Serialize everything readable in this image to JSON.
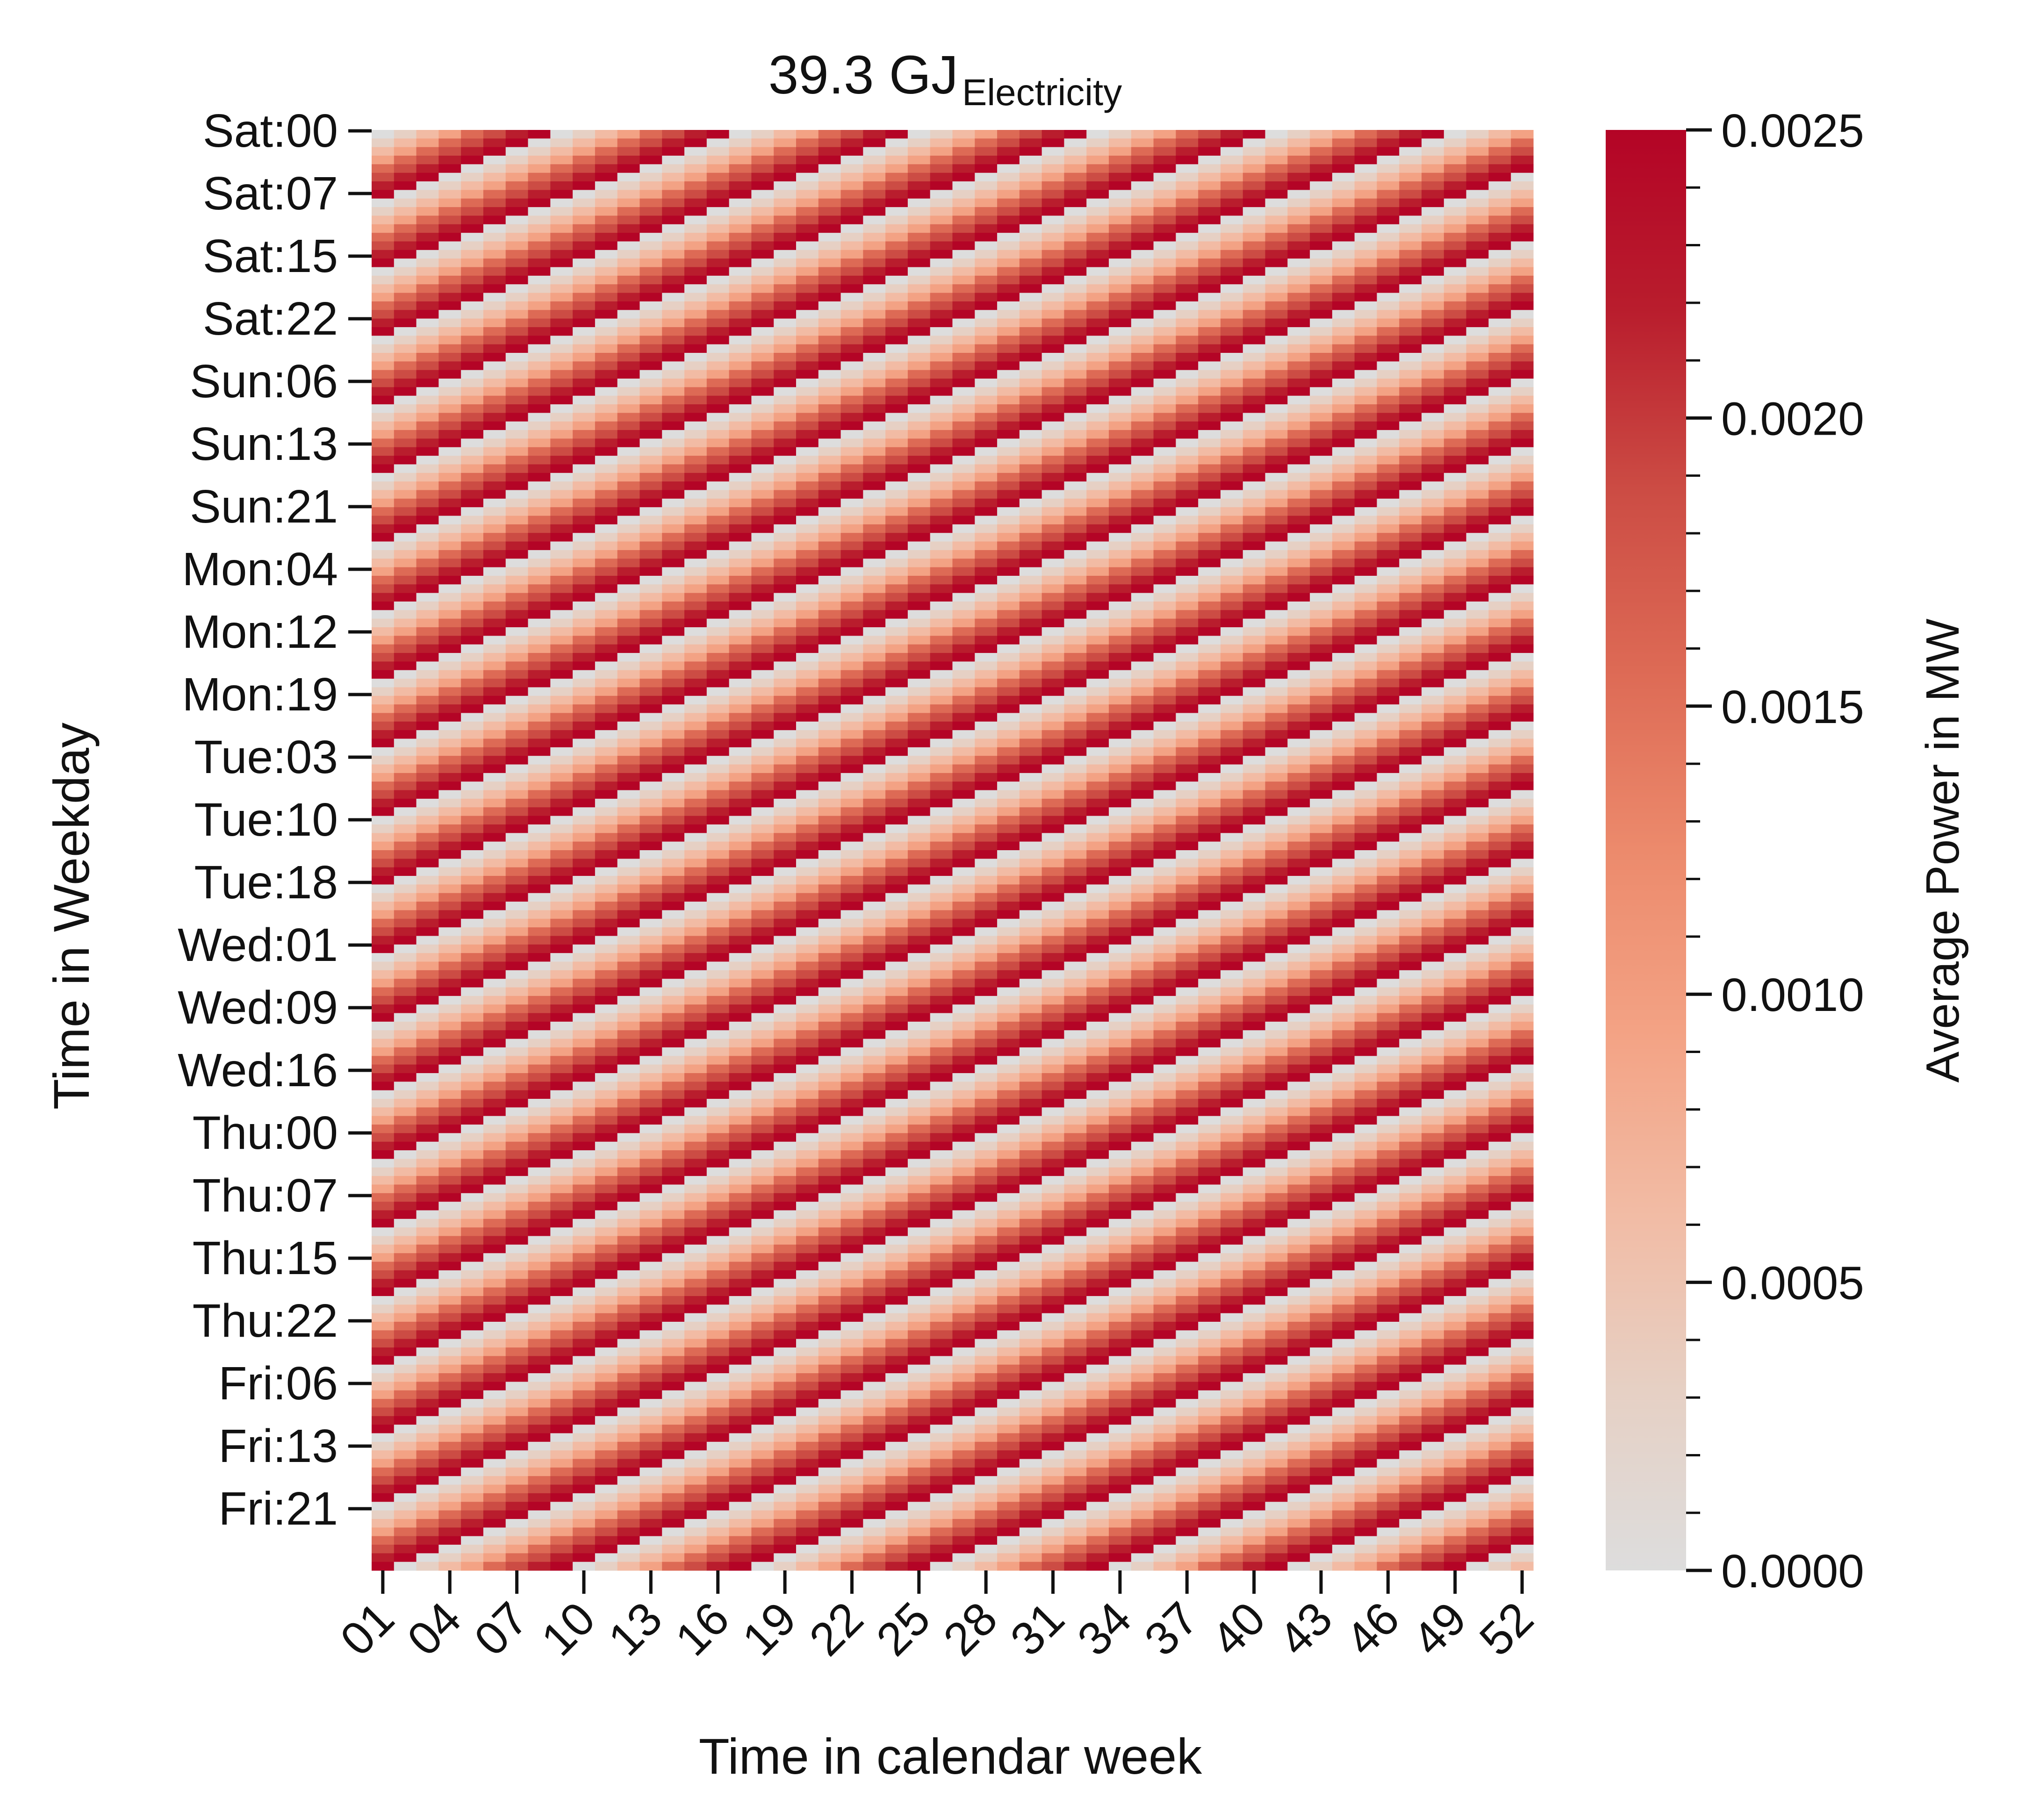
{
  "chart_data": {
    "type": "heatmap",
    "title": "39.3 GJ",
    "title_subscript": "Electricity",
    "xlabel": "Time in calendar week",
    "ylabel": "Time in Weekday",
    "colorbar_label": "Average Power in MW",
    "x_tick_labels": [
      "01",
      "04",
      "07",
      "10",
      "13",
      "16",
      "19",
      "22",
      "25",
      "28",
      "31",
      "34",
      "37",
      "40",
      "43",
      "46",
      "49",
      "52"
    ],
    "y_tick_labels": [
      "Sat:00",
      "Sat:07",
      "Sat:15",
      "Sat:22",
      "Sun:06",
      "Sun:13",
      "Sun:21",
      "Mon:04",
      "Mon:12",
      "Mon:19",
      "Tue:03",
      "Tue:10",
      "Tue:18",
      "Wed:01",
      "Wed:09",
      "Wed:16",
      "Thu:00",
      "Thu:07",
      "Thu:15",
      "Thu:22",
      "Fri:06",
      "Fri:13",
      "Fri:21"
    ],
    "colorbar_ticks": [
      "0.0000",
      "0.0005",
      "0.0010",
      "0.0015",
      "0.0020",
      "0.0025"
    ],
    "colorbar_range": [
      0,
      0.0025
    ],
    "n_weeks": 52,
    "pattern": {
      "period_hours": 24,
      "ramp_levels": 8,
      "max_value": 0.0025,
      "min_value": 0.0,
      "shift_hours_per_week": 1
    },
    "colormap": [
      "#dddddd",
      "#e6d0c4",
      "#f2bba4",
      "#f3a284",
      "#ec8a6c",
      "#dd6a55",
      "#cc4c44",
      "#b91d2d",
      "#b40426"
    ]
  }
}
